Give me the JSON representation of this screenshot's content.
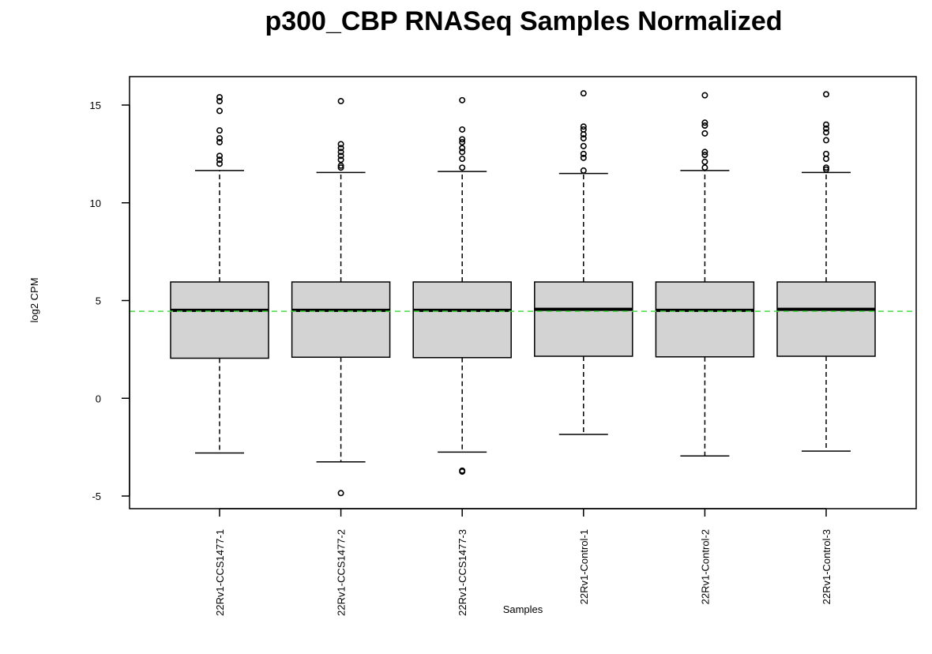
{
  "chart_data": {
    "type": "boxplot",
    "title": "p300_CBP RNASeq Samples Normalized",
    "xlabel": "Samples",
    "ylabel": "log2 CPM",
    "ylim": [
      -5.6,
      16.5
    ],
    "yticks": [
      -5,
      0,
      5,
      10,
      15
    ],
    "reference_line": {
      "y": 4.45,
      "color": "#44dd44",
      "style": "dashed"
    },
    "box_fill": "#d3d3d3",
    "categories": [
      "22Rv1-CCS1477-1",
      "22Rv1-CCS1477-2",
      "22Rv1-CCS1477-3",
      "22Rv1-Control-1",
      "22Rv1-Control-2",
      "22Rv1-Control-3"
    ],
    "boxes": [
      {
        "name": "22Rv1-CCS1477-1",
        "lower_whisker": -2.8,
        "q1": 2.05,
        "median": 4.5,
        "q3": 5.95,
        "upper_whisker": 11.65,
        "outliers": [
          15.4,
          15.2,
          14.7,
          13.7,
          13.3,
          13.1,
          12.4,
          12.2,
          12.0
        ]
      },
      {
        "name": "22Rv1-CCS1477-2",
        "lower_whisker": -3.25,
        "q1": 2.1,
        "median": 4.5,
        "q3": 5.95,
        "upper_whisker": 11.55,
        "outliers": [
          15.2,
          13.0,
          12.8,
          12.6,
          12.4,
          12.2,
          11.9,
          11.8,
          -4.85
        ]
      },
      {
        "name": "22Rv1-CCS1477-3",
        "lower_whisker": -2.75,
        "q1": 2.08,
        "median": 4.5,
        "q3": 5.95,
        "upper_whisker": 11.6,
        "outliers": [
          15.25,
          13.75,
          13.25,
          13.1,
          12.8,
          12.6,
          12.25,
          11.8,
          -3.7,
          -3.75
        ]
      },
      {
        "name": "22Rv1-Control-1",
        "lower_whisker": -1.85,
        "q1": 2.15,
        "median": 4.55,
        "q3": 5.95,
        "upper_whisker": 11.5,
        "outliers": [
          15.6,
          13.9,
          13.75,
          13.5,
          13.3,
          12.9,
          12.5,
          12.3,
          11.65
        ]
      },
      {
        "name": "22Rv1-Control-2",
        "lower_whisker": -2.95,
        "q1": 2.12,
        "median": 4.5,
        "q3": 5.95,
        "upper_whisker": 11.65,
        "outliers": [
          15.5,
          14.1,
          13.95,
          13.55,
          12.6,
          12.45,
          12.1,
          11.8
        ]
      },
      {
        "name": "22Rv1-Control-3",
        "lower_whisker": -2.7,
        "q1": 2.15,
        "median": 4.55,
        "q3": 5.95,
        "upper_whisker": 11.55,
        "outliers": [
          15.55,
          14.0,
          13.8,
          13.6,
          13.2,
          12.5,
          12.25,
          11.8,
          11.7
        ]
      }
    ]
  }
}
